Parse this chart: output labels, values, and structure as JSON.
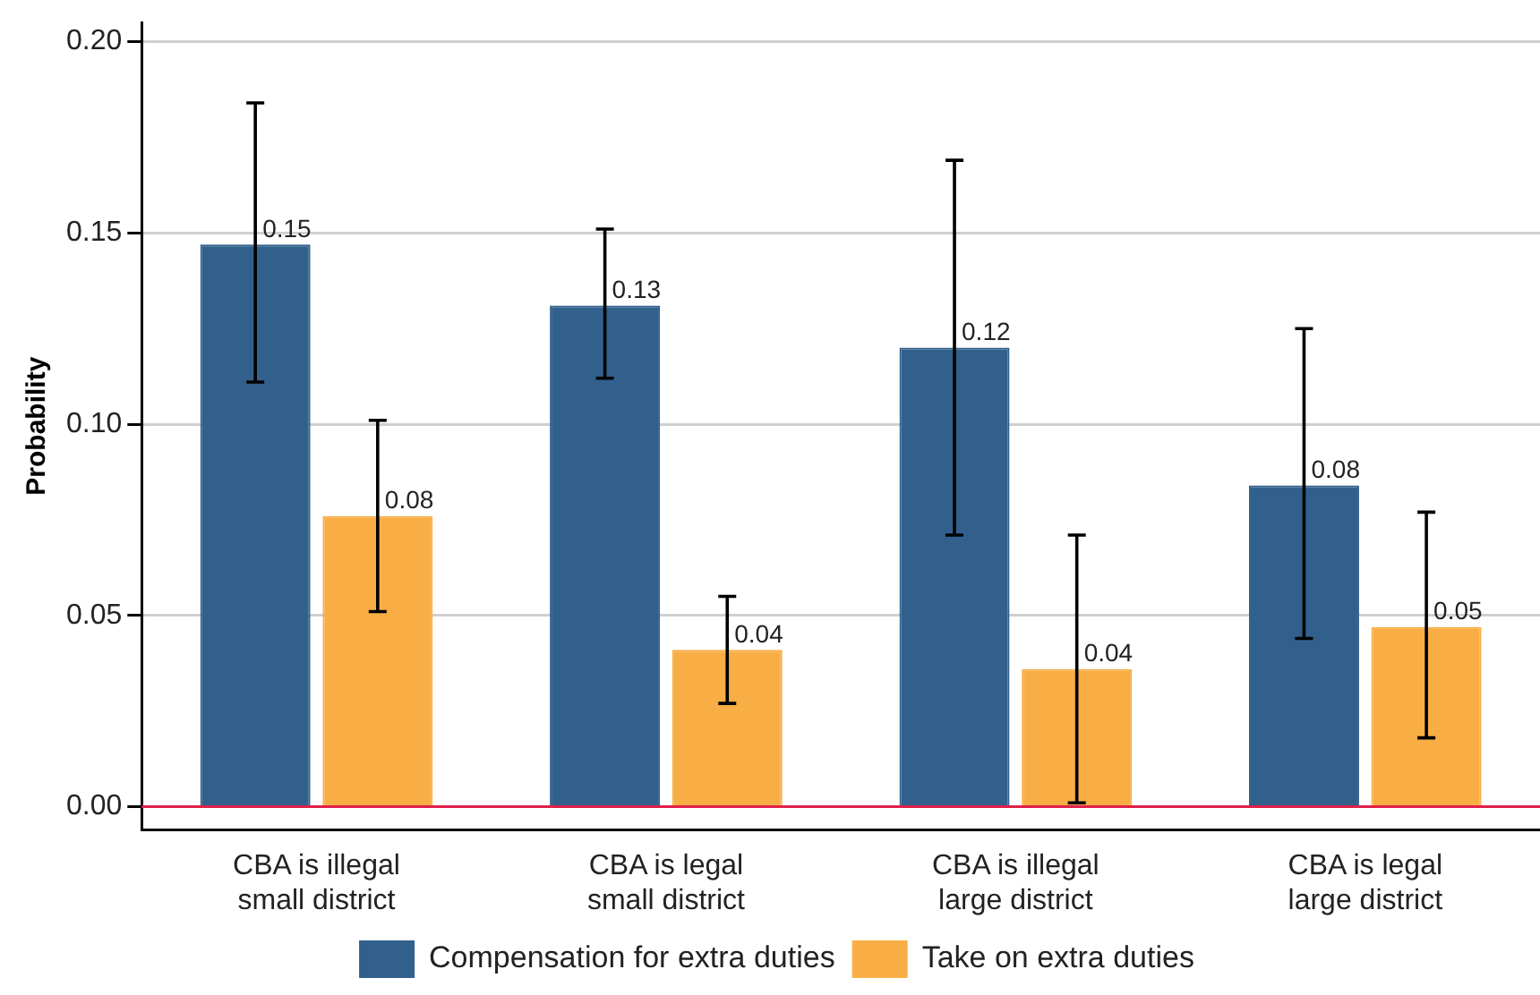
{
  "chart_data": {
    "type": "bar",
    "ylabel": "Probability",
    "categories": [
      "CBA is illegal\nsmall district",
      "CBA is legal\nsmall district",
      "CBA is illegal\nlarge district",
      "CBA is legal\nlarge district"
    ],
    "series": [
      {
        "name": "Compensation for extra duties",
        "color": "#31608c",
        "values": [
          0.147,
          0.131,
          0.12,
          0.084
        ],
        "errors": [
          [
            0.111,
            0.184
          ],
          [
            0.112,
            0.151
          ],
          [
            0.071,
            0.169
          ],
          [
            0.044,
            0.125
          ]
        ],
        "value_labels": [
          "0.15",
          "0.13",
          "0.12",
          "0.08"
        ]
      },
      {
        "name": "Take on extra duties",
        "color": "#f8ae45",
        "values": [
          0.076,
          0.041,
          0.036,
          0.047
        ],
        "errors": [
          [
            0.051,
            0.101
          ],
          [
            0.027,
            0.055
          ],
          [
            0.001,
            0.071
          ],
          [
            0.018,
            0.077
          ]
        ],
        "value_labels": [
          "0.08",
          "0.04",
          "0.04",
          "0.05"
        ]
      }
    ],
    "ylim": [
      -0.006,
      0.205
    ],
    "yticks": [
      {
        "value": 0,
        "label": "0.00"
      },
      {
        "value": 0.05,
        "label": "0.05"
      },
      {
        "value": 0.1,
        "label": "0.10"
      },
      {
        "value": 0.15,
        "label": "0.15"
      },
      {
        "value": 0.2,
        "label": "0.20"
      }
    ],
    "ref_lines": [
      {
        "axis": "y",
        "value": 0,
        "color": "#e0204a"
      }
    ],
    "grid": "y",
    "legend": "bottom"
  }
}
